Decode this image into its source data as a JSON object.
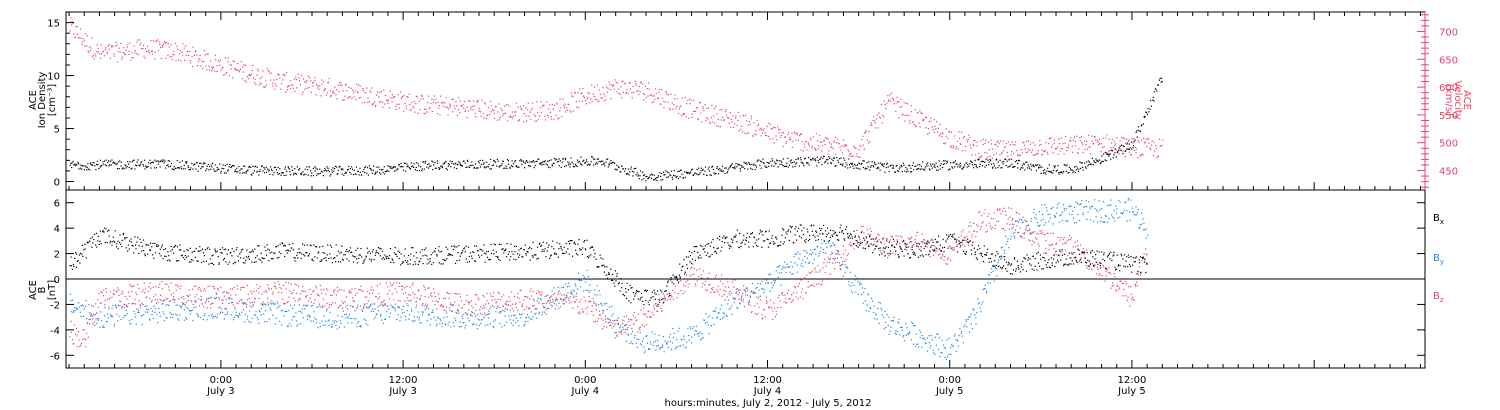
{
  "colors": {
    "black": "#000000",
    "pink": "#e8436a",
    "blue": "#1e86e6"
  },
  "xaxis": {
    "label": "hours:minutes, July  2, 2012 - July  5, 2012",
    "ticks": [
      {
        "time": "0:00",
        "date": "July 3",
        "hours": 24
      },
      {
        "time": "12:00",
        "date": "July 3",
        "hours": 36
      },
      {
        "time": "0:00",
        "date": "July 4",
        "hours": 48
      },
      {
        "time": "12:00",
        "date": "July 4",
        "hours": 60
      },
      {
        "time": "0:00",
        "date": "July 5",
        "hours": 72
      },
      {
        "time": "12:00",
        "date": "July 5",
        "hours": 84
      }
    ]
  },
  "top_panel": {
    "left_label": [
      "ACE",
      "Ion Density",
      "[cm⁻³]"
    ],
    "right_label": [
      "ACE",
      "Velocity",
      "[km/s]"
    ],
    "left_ticks": [
      "0",
      "5",
      "10",
      "15"
    ],
    "right_ticks": [
      "450",
      "500",
      "550",
      "600",
      "650",
      "700"
    ]
  },
  "bottom_panel": {
    "left_label": [
      "ACE",
      "B",
      "[nT]"
    ],
    "left_ticks": [
      "-6",
      "-4",
      "-2",
      "0",
      "2",
      "4",
      "6"
    ],
    "legend": [
      {
        "base": "B",
        "sub": "x",
        "color": "#000000"
      },
      {
        "base": "B",
        "sub": "y",
        "color": "#1e86e6"
      },
      {
        "base": "B",
        "sub": "z",
        "color": "#e8436a"
      }
    ]
  },
  "chart_data": [
    {
      "type": "scatter",
      "title": "",
      "xlabel": "hours:minutes, July  2, 2012 - July  5, 2012",
      "xlim": [
        13.8,
        103.3
      ],
      "ylim_left": [
        -0.8,
        16
      ],
      "ylim_right": [
        415,
        735
      ],
      "series": [
        {
          "name": "",
          "axis": "left",
          "color": "#000000",
          "points": [
            [
              14,
              1.6
            ],
            [
              20,
              1.7
            ],
            [
              26,
              1.1
            ],
            [
              30,
              1.0
            ],
            [
              34,
              1.1
            ],
            [
              38,
              1.6
            ],
            [
              42,
              1.7
            ],
            [
              46,
              1.8
            ],
            [
              49,
              2.0
            ],
            [
              52,
              0.5
            ],
            [
              56,
              1.0
            ],
            [
              60,
              1.8
            ],
            [
              64,
              2.0
            ],
            [
              68,
              1.3
            ],
            [
              72,
              1.6
            ],
            [
              76,
              1.8
            ],
            [
              78,
              1.2
            ],
            [
              80,
              1.2
            ],
            [
              82,
              2.2
            ],
            [
              84,
              3.5
            ],
            [
              86,
              10
            ]
          ]
        },
        {
          "name": "",
          "axis": "right",
          "color": "#e8436a",
          "points": [
            [
              14,
              710
            ],
            [
              16,
              660
            ],
            [
              19,
              670
            ],
            [
              21,
              665
            ],
            [
              24,
              640
            ],
            [
              26,
              625
            ],
            [
              28,
              610
            ],
            [
              31,
              600
            ],
            [
              34,
              585
            ],
            [
              37,
              570
            ],
            [
              40,
              565
            ],
            [
              43,
              555
            ],
            [
              46,
              560
            ],
            [
              48,
              585
            ],
            [
              50,
              600
            ],
            [
              52,
              595
            ],
            [
              55,
              560
            ],
            [
              58,
              540
            ],
            [
              61,
              510
            ],
            [
              64,
              495
            ],
            [
              66,
              490
            ],
            [
              68,
              575
            ],
            [
              70,
              540
            ],
            [
              72,
              510
            ],
            [
              74,
              490
            ],
            [
              76,
              485
            ],
            [
              78,
              495
            ],
            [
              80,
              495
            ],
            [
              82,
              500
            ],
            [
              84,
              492
            ],
            [
              86,
              490
            ]
          ]
        }
      ]
    },
    {
      "type": "scatter",
      "title": "",
      "xlabel": "hours:minutes, July  2, 2012 - July  5, 2012",
      "xlim": [
        13.8,
        103.3
      ],
      "ylim": [
        -7,
        7
      ],
      "series": [
        {
          "name": "Bx",
          "color": "#000000",
          "points": [
            [
              14,
              1
            ],
            [
              16,
              3.5
            ],
            [
              20,
              2.2
            ],
            [
              24,
              1.8
            ],
            [
              28,
              2.2
            ],
            [
              32,
              2.0
            ],
            [
              36,
              1.8
            ],
            [
              40,
              2.0
            ],
            [
              44,
              2.2
            ],
            [
              48,
              2.5
            ],
            [
              51,
              -1.2
            ],
            [
              53,
              -1.5
            ],
            [
              55,
              2.0
            ],
            [
              58,
              3.2
            ],
            [
              60,
              3.2
            ],
            [
              62,
              3.6
            ],
            [
              65,
              3.8
            ],
            [
              67,
              2.6
            ],
            [
              70,
              2.3
            ],
            [
              72,
              3.0
            ],
            [
              74,
              2.1
            ],
            [
              76,
              1.0
            ],
            [
              78,
              1.5
            ],
            [
              80,
              1.8
            ],
            [
              82,
              1.6
            ],
            [
              85,
              1.0
            ]
          ]
        },
        {
          "name": "By",
          "color": "#1e86e6",
          "points": [
            [
              14,
              -2
            ],
            [
              16,
              -3
            ],
            [
              20,
              -2.5
            ],
            [
              24,
              -2.2
            ],
            [
              28,
              -2.8
            ],
            [
              32,
              -3.0
            ],
            [
              36,
              -2.5
            ],
            [
              40,
              -3.0
            ],
            [
              44,
              -2.8
            ],
            [
              48,
              0
            ],
            [
              50,
              -3.5
            ],
            [
              52,
              -5.0
            ],
            [
              55,
              -4.5
            ],
            [
              58,
              -1.5
            ],
            [
              60,
              -0.5
            ],
            [
              62,
              1.5
            ],
            [
              64,
              2.5
            ],
            [
              66,
              -1
            ],
            [
              68,
              -3.5
            ],
            [
              70,
              -4.5
            ],
            [
              72,
              -5.5
            ],
            [
              73.5,
              -3.2
            ],
            [
              76,
              3.5
            ],
            [
              78,
              5.0
            ],
            [
              80,
              5.3
            ],
            [
              82,
              5.4
            ],
            [
              84,
              5.5
            ],
            [
              85,
              4.0
            ]
          ]
        },
        {
          "name": "Bz",
          "color": "#e8436a",
          "points": [
            [
              14,
              -4.0
            ],
            [
              15,
              -4.8
            ],
            [
              16,
              -1.5
            ],
            [
              20,
              -1.0
            ],
            [
              24,
              -1.5
            ],
            [
              28,
              -1.0
            ],
            [
              32,
              -1.5
            ],
            [
              36,
              -1.0
            ],
            [
              40,
              -2.0
            ],
            [
              44,
              -1.5
            ],
            [
              48,
              -2.0
            ],
            [
              50,
              -4.0
            ],
            [
              52,
              -3.0
            ],
            [
              55,
              0.5
            ],
            [
              58,
              -1.0
            ],
            [
              60,
              -2.5
            ],
            [
              62,
              -1.0
            ],
            [
              64,
              1.0
            ],
            [
              66,
              3.5
            ],
            [
              68,
              2.5
            ],
            [
              70,
              3.0
            ],
            [
              72,
              2.0
            ],
            [
              74,
              4.6
            ],
            [
              76,
              4.8
            ],
            [
              78,
              3.0
            ],
            [
              80,
              2.6
            ],
            [
              82,
              0.8
            ],
            [
              84,
              -1.5
            ],
            [
              85,
              3.0
            ]
          ]
        }
      ]
    }
  ]
}
